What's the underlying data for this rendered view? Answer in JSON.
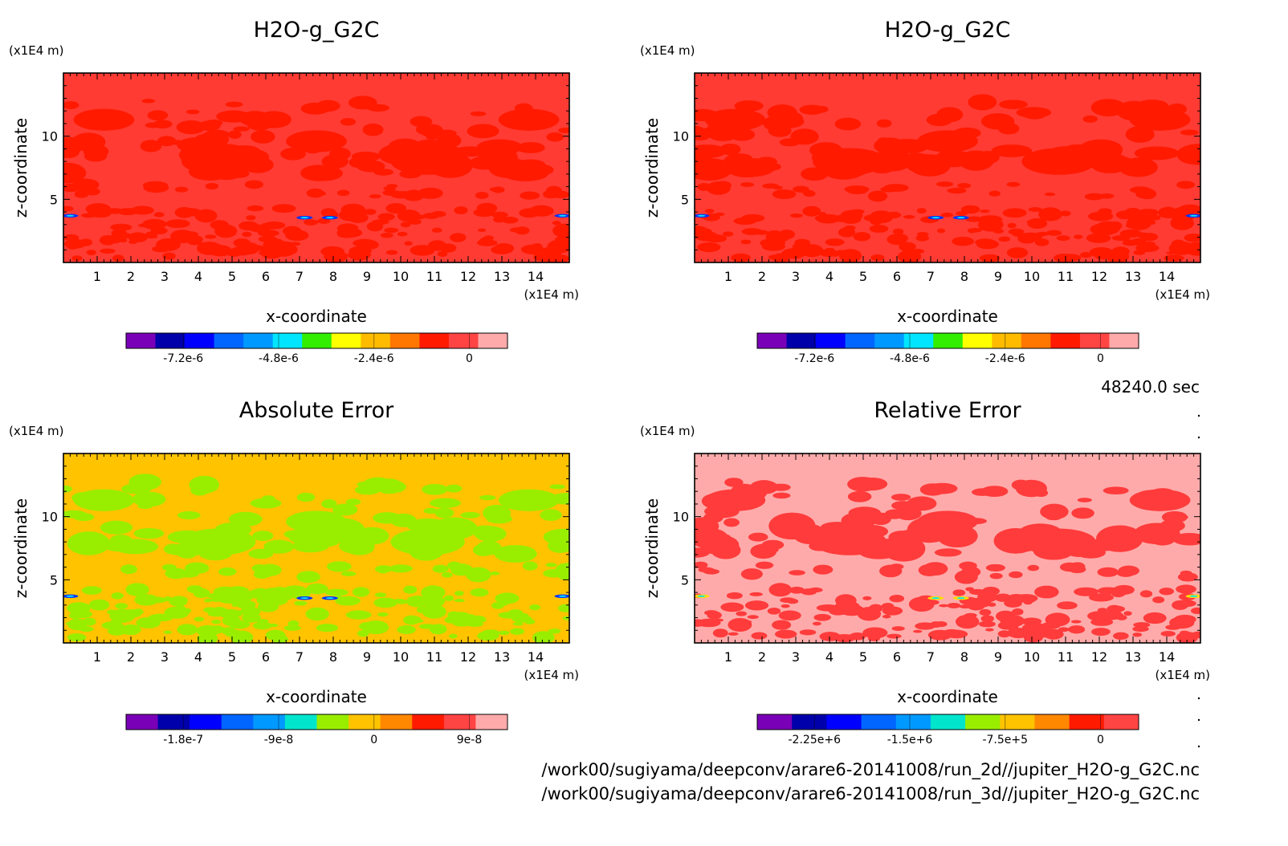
{
  "timestamp": "48240.0 sec",
  "files": [
    "/work00/sugiyama/deepconv/arare6-20141008/run_2d//jupiter_H2O-g_G2C.nc",
    "/work00/sugiyama/deepconv/arare6-20141008/run_3d//jupiter_H2O-g_G2C.nc"
  ],
  "chart_data": [
    {
      "type": "heatmap",
      "title": "H2O-g_G2C",
      "xlabel": "x-coordinate",
      "ylabel": "z-coordinate",
      "x_unit": "(x1E4 m)",
      "y_unit": "(x1E4 m)",
      "xlim": [
        0,
        15
      ],
      "ylim": [
        0,
        15
      ],
      "xticks": [
        "1",
        "2",
        "3",
        "4",
        "5",
        "6",
        "7",
        "8",
        "9",
        "10",
        "11",
        "12",
        "13",
        "14"
      ],
      "yticks": [
        "5",
        "10"
      ],
      "background_color": "#ff3b33",
      "patch_color": "#ff1a00",
      "anomaly_color": "#0033ff",
      "colorbar": {
        "colors": [
          "#7a00b8",
          "#0000aa",
          "#0000ff",
          "#0066ff",
          "#0099ff",
          "#00e5ff",
          "#33ee00",
          "#ffff00",
          "#ffbb00",
          "#ff7700",
          "#ff1a00",
          "#ff4444",
          "#ffaaaa"
        ],
        "labels": [
          "-7.2e-6",
          "-4.8e-6",
          "-2.4e-6",
          "0"
        ]
      }
    },
    {
      "type": "heatmap",
      "title": "H2O-g_G2C",
      "xlabel": "x-coordinate",
      "ylabel": "z-coordinate",
      "x_unit": "(x1E4 m)",
      "y_unit": "(x1E4 m)",
      "xlim": [
        0,
        15
      ],
      "ylim": [
        0,
        15
      ],
      "xticks": [
        "1",
        "2",
        "3",
        "4",
        "5",
        "6",
        "7",
        "8",
        "9",
        "10",
        "11",
        "12",
        "13",
        "14"
      ],
      "yticks": [
        "5",
        "10"
      ],
      "background_color": "#ff3b33",
      "patch_color": "#ff1a00",
      "anomaly_color": "#0033ff",
      "colorbar": {
        "colors": [
          "#7a00b8",
          "#0000aa",
          "#0000ff",
          "#0066ff",
          "#0099ff",
          "#00e5ff",
          "#33ee00",
          "#ffff00",
          "#ffbb00",
          "#ff7700",
          "#ff1a00",
          "#ff4444",
          "#ffaaaa"
        ],
        "labels": [
          "-7.2e-6",
          "-4.8e-6",
          "-2.4e-6",
          "0"
        ]
      }
    },
    {
      "type": "heatmap",
      "title": "Absolute Error",
      "xlabel": "x-coordinate",
      "ylabel": "z-coordinate",
      "x_unit": "(x1E4 m)",
      "y_unit": "(x1E4 m)",
      "xlim": [
        0,
        15
      ],
      "ylim": [
        0,
        15
      ],
      "xticks": [
        "1",
        "2",
        "3",
        "4",
        "5",
        "6",
        "7",
        "8",
        "9",
        "10",
        "11",
        "12",
        "13",
        "14"
      ],
      "yticks": [
        "5",
        "10"
      ],
      "background_color": "#ffc300",
      "patch_color": "#99ee00",
      "anomaly_color": "#0033ff",
      "colorbar": {
        "colors": [
          "#7a00b8",
          "#0000aa",
          "#0000ff",
          "#0066ff",
          "#0099ff",
          "#00e5cc",
          "#99ee00",
          "#ffc300",
          "#ff8800",
          "#ff1a00",
          "#ff4444",
          "#ffaaaa"
        ],
        "labels": [
          "-1.8e-7",
          "-9e-8",
          "0",
          "9e-8"
        ]
      }
    },
    {
      "type": "heatmap",
      "title": "Relative Error",
      "xlabel": "x-coordinate",
      "ylabel": "z-coordinate",
      "x_unit": "(x1E4 m)",
      "y_unit": "(x1E4 m)",
      "xlim": [
        0,
        15
      ],
      "ylim": [
        0,
        15
      ],
      "xticks": [
        "1",
        "2",
        "3",
        "4",
        "5",
        "6",
        "7",
        "8",
        "9",
        "10",
        "11",
        "12",
        "13",
        "14"
      ],
      "yticks": [
        "5",
        "10"
      ],
      "background_color": "#ffaaaa",
      "patch_color": "#ff3b3b",
      "anomaly_color": "#ffdd00",
      "colorbar": {
        "colors": [
          "#7a00b8",
          "#0000aa",
          "#0000ff",
          "#0066ff",
          "#0099ff",
          "#00e5cc",
          "#99ee00",
          "#ffc300",
          "#ff8800",
          "#ff1a00",
          "#ff4444"
        ],
        "labels": [
          "-2.25e+6",
          "-1.5e+6",
          "-7.5e+5",
          "0"
        ]
      }
    }
  ]
}
